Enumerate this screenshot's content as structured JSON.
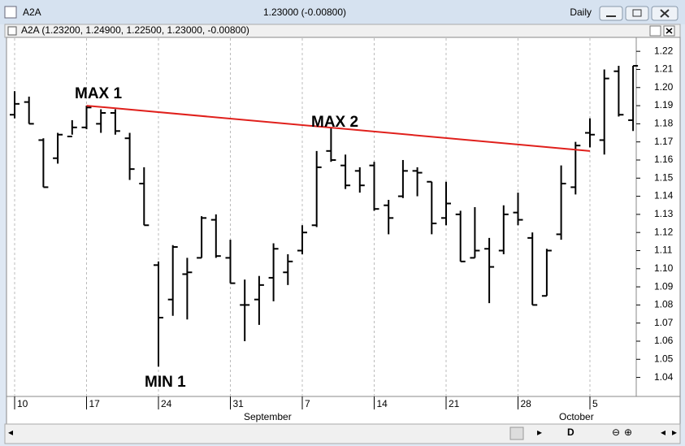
{
  "window": {
    "title": "A2A",
    "quote": "1.23000 (-0.00800)",
    "period": "Daily",
    "subtitle": "A2A (1.23200, 1.24900, 1.22500, 1.23000, -0.00800)",
    "scroll_letter": "D"
  },
  "chart_data": {
    "type": "ohlc",
    "categories": [
      "10",
      null,
      null,
      null,
      null,
      "17",
      null,
      null,
      null,
      null,
      "24",
      null,
      null,
      null,
      null,
      "31",
      null,
      null,
      null,
      null,
      "7",
      null,
      null,
      null,
      null,
      "14",
      null,
      null,
      null,
      null,
      "21",
      null,
      null,
      null,
      null,
      "28",
      null,
      null,
      null,
      null,
      "5",
      null,
      null,
      null
    ],
    "months": [
      "September",
      "October"
    ],
    "color": "#000000",
    "open": [
      1.185,
      1.192,
      1.171,
      1.161,
      1.173,
      1.178,
      1.18,
      1.186,
      1.172,
      1.147,
      1.102,
      1.083,
      1.097,
      1.106,
      1.127,
      1.106,
      1.08,
      1.083,
      1.095,
      1.098,
      1.11,
      1.124,
      1.165,
      1.157,
      1.154,
      1.157,
      1.135,
      1.14,
      1.154,
      1.148,
      1.128,
      1.13,
      1.106,
      1.111,
      1.11,
      1.131,
      1.117,
      1.085,
      1.119,
      1.145,
      1.175,
      1.171,
      1.209,
      1.182
    ],
    "high": [
      1.198,
      1.195,
      1.172,
      1.175,
      1.182,
      1.19,
      1.188,
      1.188,
      1.175,
      1.156,
      1.104,
      1.113,
      1.106,
      1.129,
      1.13,
      1.116,
      1.094,
      1.096,
      1.114,
      1.108,
      1.124,
      1.165,
      1.178,
      1.163,
      1.156,
      1.159,
      1.138,
      1.16,
      1.156,
      1.148,
      1.148,
      1.132,
      1.134,
      1.117,
      1.135,
      1.142,
      1.12,
      1.111,
      1.157,
      1.17,
      1.183,
      1.21,
      1.212,
      1.212
    ],
    "low": [
      1.183,
      1.18,
      1.145,
      1.158,
      1.174,
      1.177,
      1.175,
      1.174,
      1.149,
      1.124,
      1.046,
      1.074,
      1.072,
      1.106,
      1.106,
      1.092,
      1.06,
      1.069,
      1.082,
      1.091,
      1.108,
      1.123,
      1.159,
      1.144,
      1.142,
      1.132,
      1.119,
      1.139,
      1.14,
      1.119,
      1.124,
      1.104,
      1.106,
      1.081,
      1.108,
      1.124,
      1.08,
      1.085,
      1.116,
      1.141,
      1.167,
      1.163,
      1.184,
      1.176
    ],
    "close": [
      1.191,
      1.18,
      1.145,
      1.174,
      1.178,
      1.189,
      1.186,
      1.176,
      1.155,
      1.124,
      1.073,
      1.112,
      1.098,
      1.128,
      1.107,
      1.092,
      1.08,
      1.091,
      1.111,
      1.104,
      1.12,
      1.156,
      1.16,
      1.146,
      1.146,
      1.133,
      1.128,
      1.154,
      1.153,
      1.125,
      1.136,
      1.104,
      1.11,
      1.101,
      1.13,
      1.127,
      1.08,
      1.11,
      1.147,
      1.168,
      1.174,
      1.205,
      1.185,
      1.212
    ],
    "ylim": [
      1.0295,
      1.2277
    ],
    "yticks": [
      1.04,
      1.05,
      1.06,
      1.07,
      1.08,
      1.09,
      {
        "value": 1.1,
        "label": "1.10"
      },
      1.11,
      1.12,
      1.13,
      1.14,
      1.15,
      1.16,
      1.17,
      1.18,
      1.19,
      {
        "value": 1.2,
        "label": "1.20"
      },
      1.21,
      1.22
    ],
    "trendline": {
      "color": "#e0201c",
      "x": [
        5,
        40
      ],
      "y": [
        1.19,
        1.165
      ]
    },
    "annotations": [
      "MAX 1",
      "MAX 2",
      "MIN 1"
    ],
    "annotation_color": "#e0201c",
    "grid": true
  }
}
